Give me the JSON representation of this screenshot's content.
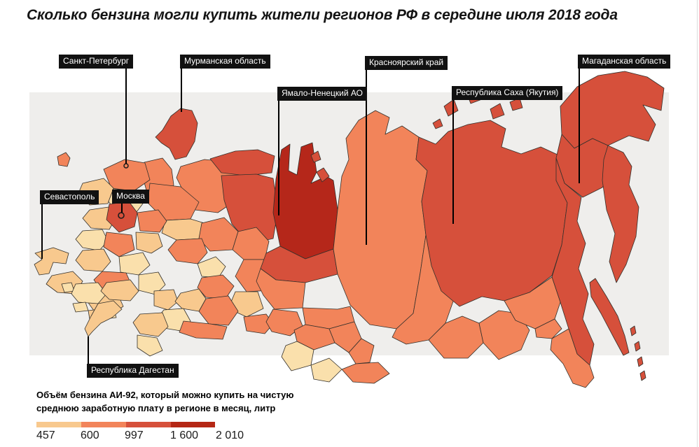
{
  "title": "Сколько бензина могли купить жители регионов РФ в середине июля 2018 года",
  "map": {
    "annotations": [
      {
        "label": "Санкт-Петербург"
      },
      {
        "label": "Мурманская область"
      },
      {
        "label": "Красноярский край"
      },
      {
        "label": "Ямало-Ненецкий АО"
      },
      {
        "label": "Республика Саха (Якутия)"
      },
      {
        "label": "Магаданская область"
      },
      {
        "label": "Севастополь"
      },
      {
        "label": "Москва"
      },
      {
        "label": "Республика Дагестан"
      }
    ],
    "backdrop_color": "#EFEEEC",
    "border_color": "#33302b"
  },
  "legend": {
    "title_line1": "Объём бензина АИ-92, который можно купить на чистую",
    "title_line2": "среднюю заработную плату в регионе в месяц, литр",
    "ticks": [
      "457",
      "600",
      "997",
      "1 600",
      "2 010"
    ],
    "colors": [
      "#F8C98E",
      "#F2845A",
      "#D6503B",
      "#B52715"
    ],
    "palette": {
      "c0": "#FAE0AC",
      "c1": "#F8C98E",
      "c2": "#F2845A",
      "c3": "#D6503B",
      "c4": "#B5271A"
    }
  },
  "chart_data": {
    "type": "choropleth_map",
    "title": "Сколько бензина могли купить жители регионов РФ в середине июля 2018 года",
    "metric": "Объём бензина АИ-92, который можно купить на чистую среднюю заработную плату в регионе в месяц, литр",
    "geography": "Субъекты Российской Федерации",
    "scale": {
      "ticks": [
        457,
        600,
        997,
        1600,
        2010
      ],
      "min": 457,
      "max": 2010,
      "colors_low_to_high": [
        "#F8C98E",
        "#F2845A",
        "#D6503B",
        "#B52715"
      ],
      "legend_position": "bottom-left"
    },
    "annotated_regions": [
      {
        "name": "Санкт-Петербург",
        "approx_value_range_liters": "600–997",
        "color_class": "salmon"
      },
      {
        "name": "Мурманская область",
        "approx_value_range_liters": "997–1600",
        "color_class": "red"
      },
      {
        "name": "Красноярский край",
        "approx_value_range_liters": "600–997",
        "color_class": "salmon"
      },
      {
        "name": "Ямало-Ненецкий АО",
        "approx_value_range_liters": "1600–2010",
        "color_class": "dark-red"
      },
      {
        "name": "Республика Саха (Якутия)",
        "approx_value_range_liters": "997–1600",
        "color_class": "red"
      },
      {
        "name": "Магаданская область",
        "approx_value_range_liters": "997–1600",
        "color_class": "red"
      },
      {
        "name": "Севастополь",
        "approx_value_range_liters": "457–600",
        "color_class": "tan"
      },
      {
        "name": "Москва",
        "approx_value_range_liters": "997–1600",
        "color_class": "red"
      },
      {
        "name": "Республика Дагестан",
        "approx_value_range_liters": "457–600",
        "color_class": "tan"
      }
    ]
  }
}
